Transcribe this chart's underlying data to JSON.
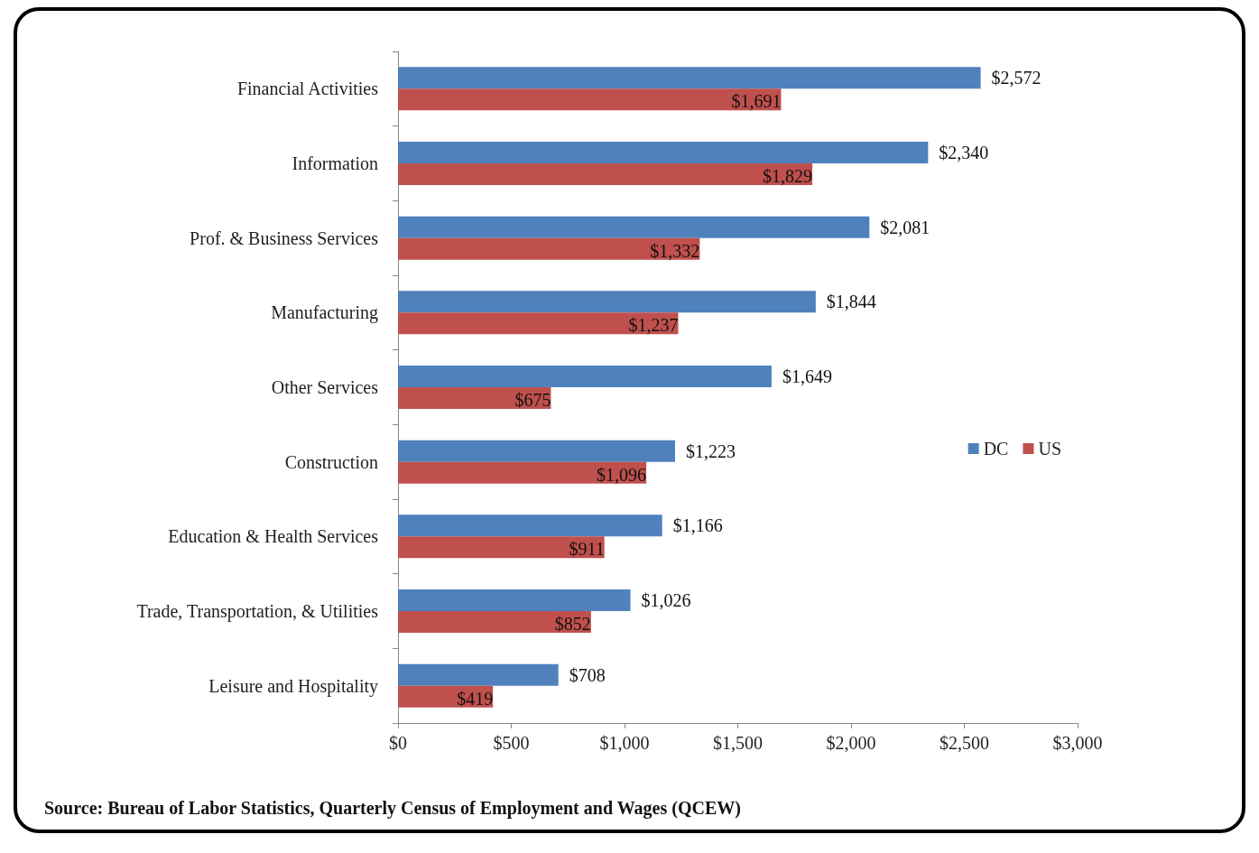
{
  "chart_data": {
    "type": "bar",
    "orientation": "horizontal",
    "categories": [
      "Financial Activities",
      "Information",
      "Prof. & Business Services",
      "Manufacturing",
      "Other Services",
      "Construction",
      "Education & Health Services",
      "Trade, Transportation, & Utilities",
      "Leisure and Hospitality"
    ],
    "series": [
      {
        "name": "DC",
        "color": "#4f81bd",
        "values": [
          2572,
          2340,
          2081,
          1844,
          1649,
          1223,
          1166,
          1026,
          708
        ],
        "value_labels": [
          "$2,572",
          "$2,340",
          "$2,081",
          "$1,844",
          "$1,649",
          "$1,223",
          "$1,166",
          "$1,026",
          "$708"
        ]
      },
      {
        "name": "US",
        "color": "#c0504d",
        "values": [
          1691,
          1829,
          1332,
          1237,
          675,
          1096,
          911,
          852,
          419
        ],
        "value_labels": [
          "$1,691",
          "$1,829",
          "$1,332",
          "$1,237",
          "$675",
          "$1,096",
          "$911",
          "$852",
          "$419"
        ]
      }
    ],
    "xlim": [
      0,
      3000
    ],
    "xticks": [
      {
        "value": 0,
        "label": "$0"
      },
      {
        "value": 500,
        "label": "$500"
      },
      {
        "value": 1000,
        "label": "$1,000"
      },
      {
        "value": 1500,
        "label": "$1,500"
      },
      {
        "value": 2000,
        "label": "$2,000"
      },
      {
        "value": 2500,
        "label": "$2,500"
      },
      {
        "value": 3000,
        "label": "$3,000"
      }
    ],
    "grid": false,
    "legend": "right",
    "annotations": [
      "Source: Bureau of Labor Statistics, Quarterly Census of Employment and Wages (QCEW)"
    ]
  }
}
